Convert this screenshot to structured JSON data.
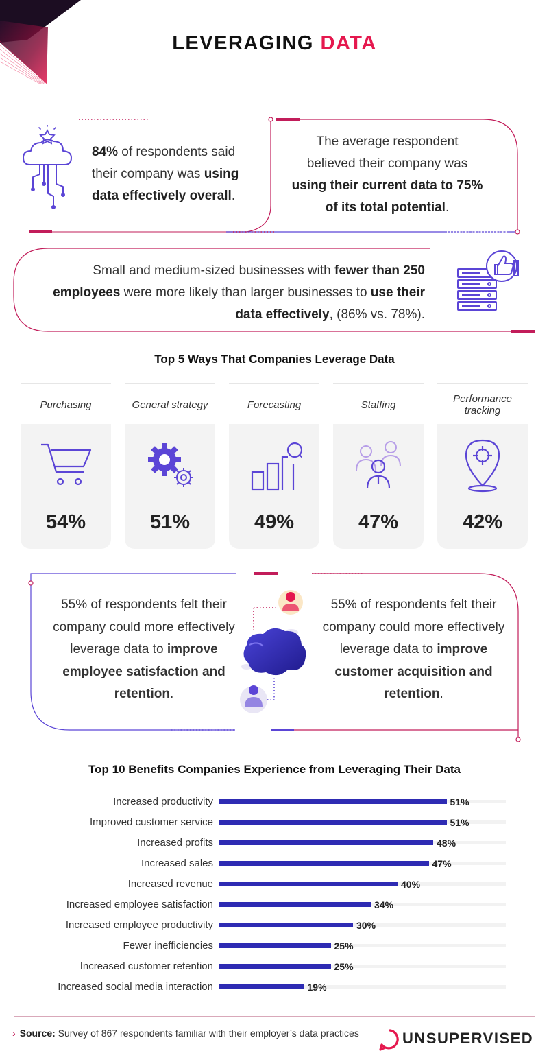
{
  "header": {
    "title_part1": "LEVERAGING ",
    "title_part2": "DATA"
  },
  "stats": {
    "stat1": {
      "bold1": "84%",
      "text1": " of respondents said their company was ",
      "bold2": "using data effectively overall",
      "text2": "."
    },
    "stat2": {
      "text1": "The average respondent believed their company was ",
      "bold1": "using their current data to 75% of its total potential",
      "text2": "."
    },
    "stat3": {
      "text1": "Small and medium-sized businesses with ",
      "bold1": "fewer than 250 employees",
      "text2": " were more likely than larger businesses to ",
      "bold2": "use their data effectively",
      "text3": ", (86% vs. 78%)."
    }
  },
  "ways": {
    "title": "Top 5 Ways That Companies Leverage Data",
    "items": [
      {
        "label": "Purchasing",
        "value": "54%"
      },
      {
        "label": "General strategy",
        "value": "51%"
      },
      {
        "label": "Forecasting",
        "value": "49%"
      },
      {
        "label": "Staffing",
        "value": "47%"
      },
      {
        "label": "Performance tracking",
        "value": "42%"
      }
    ]
  },
  "middle": {
    "left": {
      "text1": "55% of respondents felt their company could more effectively leverage data to ",
      "bold1": "improve employee satisfaction and retention",
      "text2": "."
    },
    "right": {
      "text1": "55% of respondents felt their company could more effectively leverage data to ",
      "bold1": "improve customer acquisition and retention",
      "text2": "."
    }
  },
  "colors": {
    "accent": "#e5184e",
    "bar": "#2e2bb3",
    "icon": "#5b45d6",
    "line": "#c21d5a"
  },
  "chart_data": {
    "type": "bar",
    "orientation": "horizontal",
    "title": "Top 10 Benefits Companies Experience from Leveraging Their Data",
    "categories": [
      "Increased productivity",
      "Improved customer service",
      "Increased profits",
      "Increased sales",
      "Increased revenue",
      "Increased employee satisfaction",
      "Increased employee productivity",
      "Fewer inefficiencies",
      "Increased customer retention",
      "Increased social media interaction"
    ],
    "values": [
      51,
      51,
      48,
      47,
      40,
      34,
      30,
      25,
      25,
      19
    ],
    "value_labels": [
      "51%",
      "51%",
      "48%",
      "47%",
      "40%",
      "34%",
      "30%",
      "25%",
      "25%",
      "19%"
    ],
    "xlim": [
      0,
      100
    ],
    "grid": false
  },
  "footer": {
    "source_label": "Source:",
    "source_text": " Survey of 867 respondents familiar with their employer’s data practices",
    "logo": "UNSUPERVISED"
  }
}
